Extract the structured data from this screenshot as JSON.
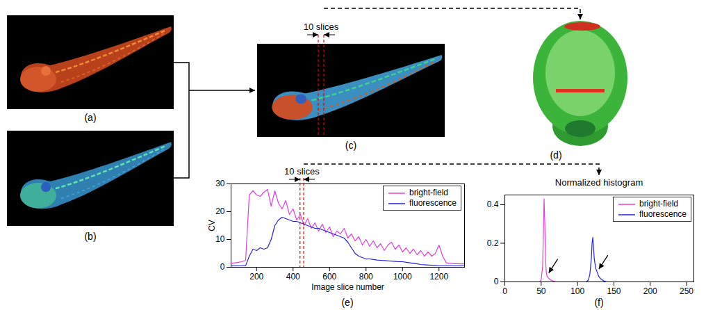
{
  "panels": {
    "a": {
      "label": "(a)"
    },
    "b": {
      "label": "(b)"
    },
    "c": {
      "label": "(c)",
      "annotation": "10 slices"
    },
    "d": {
      "label": "(d)"
    },
    "e": {
      "label": "(e)"
    },
    "f": {
      "label": "(f)"
    }
  },
  "chart_data": [
    {
      "type": "line",
      "x_label": "Image slice number",
      "y_label": "CV",
      "x": [
        60,
        80,
        100,
        120,
        140,
        160,
        180,
        200,
        220,
        240,
        260,
        280,
        300,
        320,
        340,
        360,
        380,
        400,
        420,
        440,
        460,
        480,
        500,
        520,
        540,
        560,
        580,
        600,
        620,
        640,
        660,
        680,
        700,
        720,
        740,
        760,
        780,
        800,
        820,
        840,
        860,
        880,
        900,
        920,
        940,
        960,
        980,
        1000,
        1020,
        1040,
        1060,
        1080,
        1100,
        1120,
        1140,
        1160,
        1180,
        1200,
        1220,
        1240,
        1260,
        1280,
        1300,
        1320,
        1340
      ],
      "xlim": [
        60,
        1340
      ],
      "xticks": [
        200,
        400,
        600,
        800,
        1000,
        1200
      ],
      "ylim": [
        0,
        30
      ],
      "yticks": [
        0,
        10,
        20,
        30
      ],
      "legend": "top-right",
      "highlight": {
        "label": "10 slices",
        "x": [
          440,
          460
        ]
      },
      "series": [
        {
          "name": "bright-field",
          "color": "#e040e0",
          "values": [
            1.5,
            1.6,
            1.8,
            2.0,
            2.5,
            26,
            27.5,
            26,
            25.5,
            27,
            28,
            22,
            27.5,
            23,
            21,
            24,
            19,
            21,
            17,
            19,
            15,
            17.5,
            14,
            16,
            13,
            15.5,
            12.5,
            14.5,
            11,
            13,
            12,
            14,
            10.5,
            12,
            9.5,
            11,
            8,
            10,
            7.5,
            9.5,
            7,
            8.5,
            6,
            8,
            9,
            6.5,
            8,
            5.5,
            7,
            5,
            6.5,
            4.5,
            6,
            4,
            5.5,
            4,
            5,
            8,
            4,
            1.6,
            1.4,
            1.3,
            1.3,
            1.2,
            1.2
          ]
        },
        {
          "name": "fluorescence",
          "color": "#2222dd",
          "values": [
            0.5,
            0.5,
            0.5,
            0.5,
            0.6,
            4,
            6.5,
            6,
            7,
            6.5,
            7,
            10,
            15,
            17,
            18,
            17.5,
            17,
            16.5,
            16.5,
            16,
            15.5,
            15,
            14.5,
            14,
            14,
            13.5,
            13,
            12.5,
            12,
            11.5,
            11,
            10.5,
            9,
            7,
            5,
            4,
            3.5,
            3,
            3,
            2.8,
            2.6,
            2.5,
            2.4,
            2.3,
            2.2,
            2.1,
            2,
            2,
            1.8,
            1.6,
            1.4,
            1.2,
            1,
            0.9,
            0.8,
            0.7,
            0.6,
            0.5,
            0.5,
            0.5,
            0.5,
            0.5,
            0.5,
            0.5,
            0.5
          ]
        }
      ]
    },
    {
      "type": "line",
      "title": "Normalized histogram",
      "xlim": [
        0,
        260
      ],
      "xticks": [
        0,
        50,
        100,
        150,
        200,
        250
      ],
      "ylim": [
        0,
        0.45
      ],
      "yticks": [
        0,
        0.2,
        0.4
      ],
      "legend": "top-right",
      "series": [
        {
          "name": "bright-field",
          "color": "#e040e0",
          "x": [
            0,
            48,
            50,
            52,
            53,
            54,
            55,
            56,
            57,
            58,
            60,
            63,
            66,
            70,
            255
          ],
          "values": [
            0,
            0,
            0.01,
            0.08,
            0.25,
            0.43,
            0.3,
            0.12,
            0.05,
            0.03,
            0.02,
            0.01,
            0.005,
            0,
            0
          ]
        },
        {
          "name": "fluorescence",
          "color": "#2222dd",
          "x": [
            0,
            112,
            115,
            117,
            119,
            120,
            121,
            122,
            123,
            125,
            127,
            129,
            132,
            136,
            140,
            255
          ],
          "values": [
            0,
            0,
            0.01,
            0.04,
            0.12,
            0.2,
            0.23,
            0.18,
            0.12,
            0.07,
            0.05,
            0.03,
            0.015,
            0.005,
            0,
            0
          ]
        }
      ]
    }
  ]
}
